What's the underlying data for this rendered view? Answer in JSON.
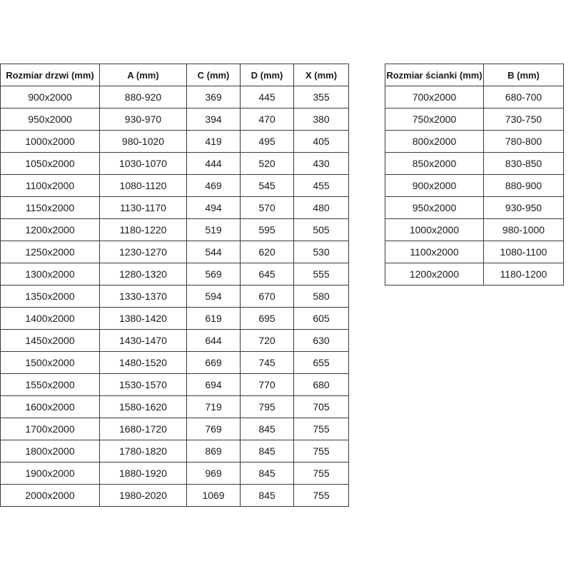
{
  "door_table": {
    "headers": [
      "Rozmiar drzwi (mm)",
      "A (mm)",
      "C (mm)",
      "D (mm)",
      "X (mm)"
    ],
    "rows": [
      [
        "900x2000",
        "880-920",
        "369",
        "445",
        "355"
      ],
      [
        "950x2000",
        "930-970",
        "394",
        "470",
        "380"
      ],
      [
        "1000x2000",
        "980-1020",
        "419",
        "495",
        "405"
      ],
      [
        "1050x2000",
        "1030-1070",
        "444",
        "520",
        "430"
      ],
      [
        "1100x2000",
        "1080-1120",
        "469",
        "545",
        "455"
      ],
      [
        "1150x2000",
        "1130-1170",
        "494",
        "570",
        "480"
      ],
      [
        "1200x2000",
        "1180-1220",
        "519",
        "595",
        "505"
      ],
      [
        "1250x2000",
        "1230-1270",
        "544",
        "620",
        "530"
      ],
      [
        "1300x2000",
        "1280-1320",
        "569",
        "645",
        "555"
      ],
      [
        "1350x2000",
        "1330-1370",
        "594",
        "670",
        "580"
      ],
      [
        "1400x2000",
        "1380-1420",
        "619",
        "695",
        "605"
      ],
      [
        "1450x2000",
        "1430-1470",
        "644",
        "720",
        "630"
      ],
      [
        "1500x2000",
        "1480-1520",
        "669",
        "745",
        "655"
      ],
      [
        "1550x2000",
        "1530-1570",
        "694",
        "770",
        "680"
      ],
      [
        "1600x2000",
        "1580-1620",
        "719",
        "795",
        "705"
      ],
      [
        "1700x2000",
        "1680-1720",
        "769",
        "845",
        "755"
      ],
      [
        "1800x2000",
        "1780-1820",
        "869",
        "845",
        "755"
      ],
      [
        "1900x2000",
        "1880-1920",
        "969",
        "845",
        "755"
      ],
      [
        "2000x2000",
        "1980-2020",
        "1069",
        "845",
        "755"
      ]
    ]
  },
  "wall_table": {
    "headers": [
      "Rozmiar ścianki (mm)",
      "B (mm)"
    ],
    "rows": [
      [
        "700x2000",
        "680-700"
      ],
      [
        "750x2000",
        "730-750"
      ],
      [
        "800x2000",
        "780-800"
      ],
      [
        "850x2000",
        "830-850"
      ],
      [
        "900x2000",
        "880-900"
      ],
      [
        "950x2000",
        "930-950"
      ],
      [
        "1000x2000",
        "980-1000"
      ],
      [
        "1100x2000",
        "1080-1100"
      ],
      [
        "1200x2000",
        "1180-1200"
      ]
    ]
  }
}
